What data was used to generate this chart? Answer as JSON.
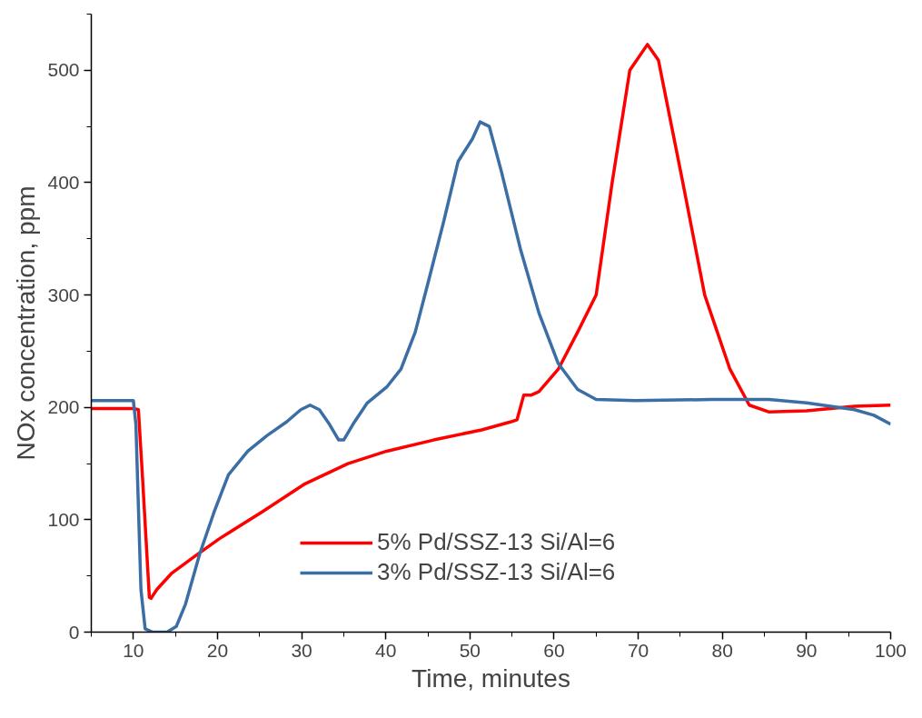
{
  "chart_data": {
    "type": "line",
    "xlabel": "Time, minutes",
    "ylabel": "NOx concentration, ppm",
    "xlim": [
      5,
      100
    ],
    "ylim": [
      0,
      550
    ],
    "xticks": [
      10,
      20,
      30,
      40,
      50,
      60,
      70,
      80,
      90,
      100
    ],
    "yticks": [
      0,
      100,
      200,
      300,
      400,
      500
    ],
    "grid": false,
    "legend": "bottom",
    "line_style": "solid",
    "marker": "none",
    "series": [
      {
        "name": "5% Pd/SSZ-13 Si/Al=6",
        "color": "#ff0000",
        "x": [
          5,
          10,
          10.6,
          11.1,
          11.9,
          12.1,
          12.8,
          14.5,
          17.4,
          20.2,
          25.3,
          30.4,
          35.5,
          40.1,
          45.7,
          51.4,
          54.8,
          55.6,
          56.4,
          57.3,
          58.2,
          60.5,
          62.8,
          65,
          66.9,
          69,
          71.1,
          72.4,
          75.3,
          77.9,
          80.9,
          83.2,
          85.5,
          90,
          95.7,
          100
        ],
        "values": [
          199,
          199,
          198,
          136,
          31,
          30,
          38,
          52,
          68,
          83,
          107,
          132,
          150,
          161,
          171,
          180,
          187,
          189,
          211,
          211,
          214,
          234,
          267,
          300,
          400,
          500,
          523,
          509,
          400,
          300,
          234,
          202,
          196,
          197,
          201,
          202
        ]
      },
      {
        "name": "3% Pd/SSZ-13 Si/Al=6",
        "color": "#3b6ea5",
        "x": [
          5,
          10,
          10.3,
          10.9,
          11.4,
          12.3,
          14,
          15.1,
          16.2,
          17.9,
          19.6,
          21.3,
          23.6,
          25.9,
          28.2,
          29.9,
          31,
          32.1,
          33.3,
          34.4,
          35,
          36.1,
          37.8,
          40.1,
          41.8,
          43.5,
          45.2,
          46.9,
          48.6,
          50.3,
          51.2,
          52.3,
          53.7,
          56,
          58.2,
          60.5,
          62.8,
          65,
          69.6,
          78.7,
          85.5,
          90,
          95.7,
          98,
          100
        ],
        "values": [
          206,
          206,
          185,
          38,
          3,
          0,
          0,
          5,
          25,
          70,
          107,
          140,
          161,
          175,
          187,
          198,
          202,
          198,
          185,
          171,
          171,
          185,
          204,
          218,
          234,
          267,
          316,
          366,
          419,
          439,
          454,
          450,
          411,
          341,
          284,
          239,
          216,
          207,
          206,
          207,
          207,
          204,
          198,
          193,
          185
        ]
      }
    ]
  }
}
